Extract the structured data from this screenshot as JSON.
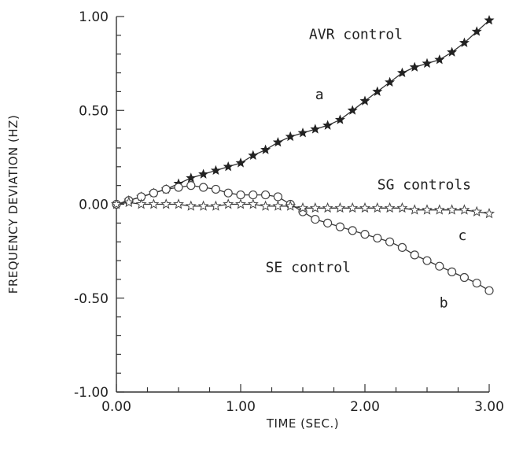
{
  "chart_data": {
    "type": "line",
    "title": "",
    "xlabel": "TIME (SEC.)",
    "ylabel": "FREQUENCY DEVIATION (HZ)",
    "xlim": [
      0,
      3
    ],
    "ylim": [
      -1,
      1
    ],
    "x_ticks": [
      0,
      1,
      2,
      3
    ],
    "x_tick_labels": [
      "0.00",
      "1.00",
      "2.00",
      "3.00"
    ],
    "y_ticks": [
      -1,
      -0.5,
      0,
      0.5,
      1
    ],
    "y_tick_labels": [
      "-1.00",
      "-0.50",
      "0.00",
      "0.50",
      "1.00"
    ],
    "grid": false,
    "series": [
      {
        "name": "AVR control",
        "label": "a",
        "marker": "filled-star",
        "x": [
          0,
          0.1,
          0.2,
          0.3,
          0.4,
          0.5,
          0.6,
          0.7,
          0.8,
          0.9,
          1.0,
          1.1,
          1.2,
          1.3,
          1.4,
          1.5,
          1.6,
          1.7,
          1.8,
          1.9,
          2.0,
          2.1,
          2.2,
          2.3,
          2.4,
          2.5,
          2.6,
          2.7,
          2.8,
          2.9,
          3.0
        ],
        "values": [
          0,
          0.02,
          0.04,
          0.06,
          0.08,
          0.11,
          0.14,
          0.16,
          0.18,
          0.2,
          0.22,
          0.26,
          0.29,
          0.33,
          0.36,
          0.38,
          0.4,
          0.42,
          0.45,
          0.5,
          0.55,
          0.6,
          0.65,
          0.7,
          0.73,
          0.75,
          0.77,
          0.81,
          0.86,
          0.92,
          0.98
        ]
      },
      {
        "name": "SE control",
        "label": "b",
        "marker": "open-circle",
        "x": [
          0,
          0.1,
          0.2,
          0.3,
          0.4,
          0.5,
          0.6,
          0.7,
          0.8,
          0.9,
          1.0,
          1.1,
          1.2,
          1.3,
          1.4,
          1.5,
          1.6,
          1.7,
          1.8,
          1.9,
          2.0,
          2.1,
          2.2,
          2.3,
          2.4,
          2.5,
          2.6,
          2.7,
          2.8,
          2.9,
          3.0
        ],
        "values": [
          0,
          0.02,
          0.04,
          0.06,
          0.08,
          0.09,
          0.1,
          0.09,
          0.08,
          0.06,
          0.05,
          0.05,
          0.05,
          0.04,
          0.0,
          -0.04,
          -0.08,
          -0.1,
          -0.12,
          -0.14,
          -0.16,
          -0.18,
          -0.2,
          -0.23,
          -0.27,
          -0.3,
          -0.33,
          -0.36,
          -0.39,
          -0.42,
          -0.46
        ]
      },
      {
        "name": "SG controls",
        "label": "c",
        "marker": "open-star",
        "x": [
          0,
          0.1,
          0.2,
          0.3,
          0.4,
          0.5,
          0.6,
          0.7,
          0.8,
          0.9,
          1.0,
          1.1,
          1.2,
          1.3,
          1.4,
          1.5,
          1.6,
          1.7,
          1.8,
          1.9,
          2.0,
          2.1,
          2.2,
          2.3,
          2.4,
          2.5,
          2.6,
          2.7,
          2.8,
          2.9,
          3.0
        ],
        "values": [
          0,
          0.01,
          0.0,
          0.0,
          0.0,
          0.0,
          -0.01,
          -0.01,
          -0.01,
          0.0,
          0.0,
          0.0,
          -0.01,
          -0.01,
          -0.01,
          -0.02,
          -0.02,
          -0.02,
          -0.02,
          -0.02,
          -0.02,
          -0.02,
          -0.02,
          -0.02,
          -0.03,
          -0.03,
          -0.03,
          -0.03,
          -0.03,
          -0.04,
          -0.05
        ]
      }
    ],
    "annotations": [
      {
        "text": "AVR control",
        "x": 1.55,
        "y": 0.88
      },
      {
        "text": "a",
        "x": 1.6,
        "y": 0.56
      },
      {
        "text": "SG controls",
        "x": 2.1,
        "y": 0.08
      },
      {
        "text": "c",
        "x": 2.75,
        "y": -0.19
      },
      {
        "text": "SE control",
        "x": 1.2,
        "y": -0.36
      },
      {
        "text": "b",
        "x": 2.6,
        "y": -0.55
      }
    ]
  }
}
